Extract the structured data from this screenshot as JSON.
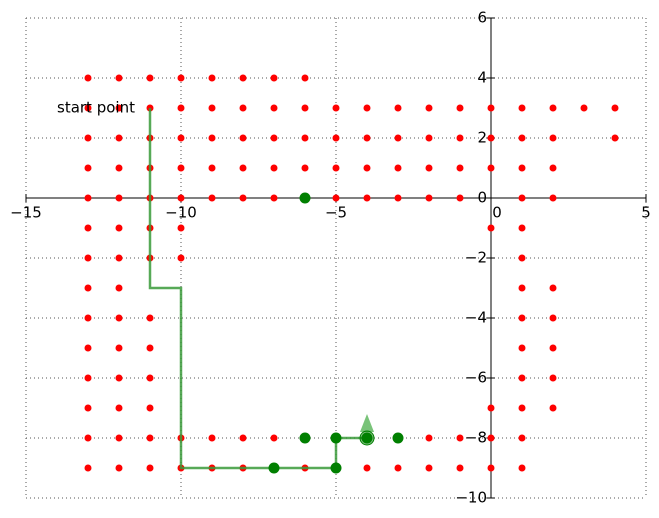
{
  "chart_data": {
    "type": "scatter",
    "xlim": [
      -15,
      5
    ],
    "ylim": [
      -10,
      6
    ],
    "xticks": [
      {
        "value": -15,
        "label": "−15"
      },
      {
        "value": -10,
        "label": "−10"
      },
      {
        "value": -5,
        "label": "−5"
      },
      0,
      5
    ],
    "yticks": [
      {
        "value": -10,
        "label": "−10"
      },
      {
        "value": -8,
        "label": "−8"
      },
      {
        "value": -6,
        "label": "−6"
      },
      {
        "value": -4,
        "label": "−4"
      },
      {
        "value": -2,
        "label": "−2"
      },
      0,
      2,
      4,
      6
    ],
    "grid": true,
    "annotation": {
      "text": "start point",
      "x": -14,
      "y": 3
    },
    "series": [
      {
        "kind": "scatter",
        "color": "#ff0000",
        "x": [
          -13,
          -12,
          -11,
          -10,
          -9,
          -8,
          -7,
          -6,
          -13,
          -12,
          -11,
          -10,
          -9,
          -8,
          -7,
          -6,
          -5,
          -4,
          -3,
          -2,
          -1,
          0,
          1,
          2,
          3,
          4,
          -13,
          -12,
          -11,
          -10,
          -9,
          -8,
          -7,
          -6,
          -5,
          -4,
          -3,
          -2,
          -1,
          0,
          1,
          2,
          4,
          -13,
          -12,
          -11,
          -10,
          -9,
          -8,
          -7,
          -6,
          -5,
          -4,
          -3,
          -2,
          -1,
          0,
          1,
          2,
          -13,
          -12,
          -11,
          -10,
          -9,
          -8,
          -7,
          -5,
          -4,
          -3,
          -2,
          -1,
          1,
          2,
          -13,
          -12,
          -11,
          -10,
          0,
          1,
          -13,
          -12,
          -11,
          -10,
          1,
          -13,
          -12,
          1,
          2,
          -13,
          -12,
          -11,
          1,
          2,
          -13,
          -12,
          -11,
          1,
          2,
          -13,
          -12,
          -11,
          1,
          2,
          -13,
          -12,
          -11,
          0,
          1,
          2,
          -13,
          -12,
          -11,
          -10,
          -9,
          -8,
          -7,
          -2,
          -1,
          0,
          1,
          -13,
          -12,
          -11,
          -10,
          -9,
          -8,
          -6,
          -4,
          -3,
          -2,
          -1,
          0,
          1
        ],
        "values": [
          4,
          4,
          4,
          4,
          4,
          4,
          4,
          4,
          3,
          3,
          3,
          3,
          3,
          3,
          3,
          3,
          3,
          3,
          3,
          3,
          3,
          3,
          3,
          3,
          3,
          3,
          2,
          2,
          2,
          2,
          2,
          2,
          2,
          2,
          2,
          2,
          2,
          2,
          2,
          2,
          2,
          2,
          2,
          1,
          1,
          1,
          1,
          1,
          1,
          1,
          1,
          1,
          1,
          1,
          1,
          1,
          1,
          1,
          1,
          0,
          0,
          0,
          0,
          0,
          0,
          0,
          0,
          0,
          0,
          0,
          0,
          0,
          0,
          -1,
          -1,
          -1,
          -1,
          -1,
          -1,
          -2,
          -2,
          -2,
          -2,
          -2,
          -3,
          -3,
          -3,
          -3,
          -4,
          -4,
          -4,
          -4,
          -4,
          -5,
          -5,
          -5,
          -5,
          -5,
          -6,
          -6,
          -6,
          -6,
          -6,
          -7,
          -7,
          -7,
          -7,
          -7,
          -7,
          -8,
          -8,
          -8,
          -8,
          -8,
          -8,
          -8,
          -8,
          -8,
          -8,
          -8,
          -9,
          -9,
          -9,
          -9,
          -9,
          -9,
          -9,
          -9,
          -9,
          -9,
          -9,
          -9,
          -9
        ]
      },
      {
        "kind": "line",
        "color": "#3a9a3a",
        "x": [
          -11,
          -11,
          -10,
          -10,
          -5,
          -5,
          -4
        ],
        "values": [
          3,
          -3,
          -3,
          -9,
          -9,
          -8,
          -8
        ]
      },
      {
        "kind": "scatter",
        "color": "#007f00",
        "x": [
          -6,
          -6,
          -5,
          -4,
          -3,
          -7,
          -5
        ],
        "values": [
          0,
          -8,
          -8,
          -8,
          -8,
          -9,
          -9
        ]
      },
      {
        "kind": "triangle",
        "color": "#4caf4c",
        "x": [
          -4
        ],
        "values": [
          -7.5
        ]
      },
      {
        "kind": "ring",
        "color": "#007f00",
        "x": [
          -4
        ],
        "values": [
          -8
        ]
      }
    ]
  }
}
